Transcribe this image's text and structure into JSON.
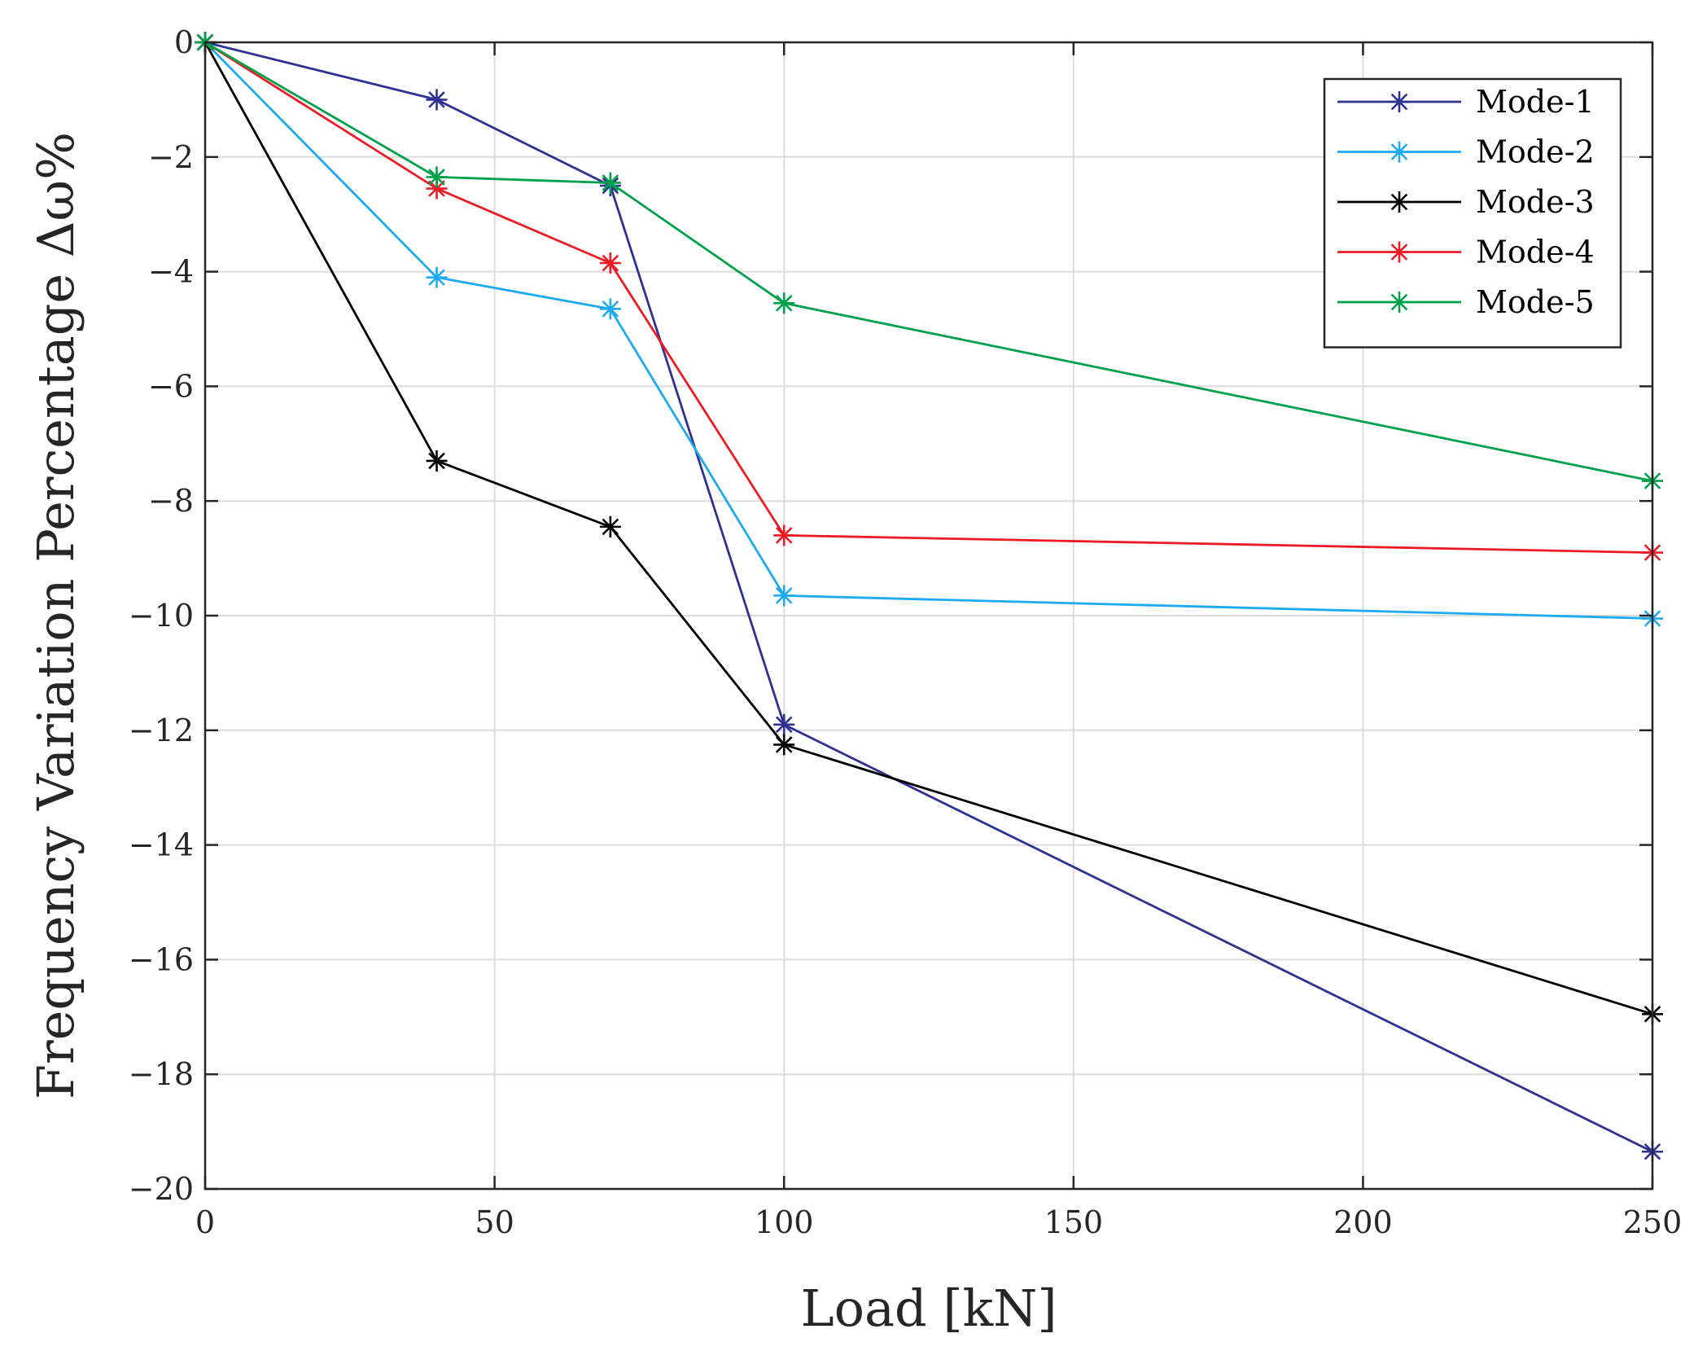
{
  "chart_data": {
    "type": "line",
    "title": "",
    "xlabel": "Load [kN]",
    "ylabel": "Frequency Variation Percentage Δω%",
    "x": [
      0,
      40,
      70,
      100,
      250
    ],
    "xlim": [
      0,
      250
    ],
    "ylim": [
      -20,
      0
    ],
    "xticks": [
      0,
      50,
      100,
      150,
      200,
      250
    ],
    "yticks": [
      0,
      -2,
      -4,
      -6,
      -8,
      -10,
      -12,
      -14,
      -16,
      -18,
      -20
    ],
    "xtick_labels": [
      "0",
      "50",
      "100",
      "150",
      "200",
      "250"
    ],
    "ytick_labels": [
      "0",
      "−2",
      "−4",
      "−6",
      "−8",
      "−10",
      "−12",
      "−14",
      "−16",
      "−18",
      "−20"
    ],
    "grid": true,
    "legend_position": "top-right",
    "marker": "asterisk",
    "series": [
      {
        "name": "Mode-1",
        "color": "#2e3192",
        "values": [
          0,
          -1.0,
          -2.5,
          -11.9,
          -19.35
        ]
      },
      {
        "name": "Mode-2",
        "color": "#1eaaf1",
        "values": [
          0,
          -4.1,
          -4.65,
          -9.65,
          -10.05
        ]
      },
      {
        "name": "Mode-3",
        "color": "#000000",
        "values": [
          0,
          -7.3,
          -8.45,
          -12.25,
          -16.95
        ]
      },
      {
        "name": "Mode-4",
        "color": "#ed1c24",
        "values": [
          0,
          -2.55,
          -3.85,
          -8.6,
          -8.9
        ]
      },
      {
        "name": "Mode-5",
        "color": "#00a14b",
        "values": [
          0,
          -2.35,
          -2.45,
          -4.55,
          -7.65
        ]
      }
    ]
  }
}
